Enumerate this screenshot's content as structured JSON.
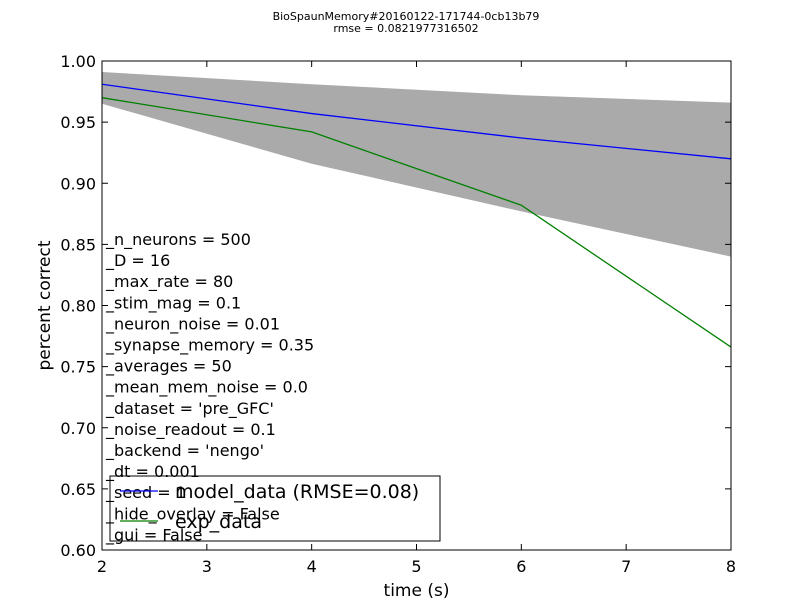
{
  "chart_data": {
    "type": "line",
    "title": "BioSpaunMemory#20160122-171744-0cb13b79",
    "subtitle": "rmse = 0.0821977316502",
    "xlabel": "time (s)",
    "ylabel": "percent correct",
    "xlim": [
      2,
      8
    ],
    "ylim": [
      0.6,
      1.0
    ],
    "x_ticks": [
      "2",
      "3",
      "4",
      "5",
      "6",
      "7",
      "8"
    ],
    "y_ticks": [
      "0.60",
      "0.65",
      "0.70",
      "0.75",
      "0.80",
      "0.85",
      "0.90",
      "0.95",
      "1.00"
    ],
    "grid": false,
    "legend_position": "lower-left",
    "series": [
      {
        "name": "model_data (RMSE=0.08)",
        "color": "#0000ff",
        "x": [
          2,
          4,
          6,
          8
        ],
        "y": [
          0.981,
          0.957,
          0.937,
          0.92
        ]
      },
      {
        "name": "exp_data",
        "color": "#008000",
        "x": [
          2,
          4,
          6,
          8
        ],
        "y": [
          0.97,
          0.942,
          0.882,
          0.766
        ]
      }
    ],
    "confidence_band": {
      "color": "#aaaaaa",
      "x": [
        2,
        4,
        6,
        8
      ],
      "lower": [
        0.965,
        0.916,
        0.877,
        0.84
      ],
      "upper": [
        0.991,
        0.981,
        0.972,
        0.966
      ]
    },
    "annotations": [
      "_n_neurons = 500",
      "_D = 16",
      "_max_rate = 80",
      "_stim_mag = 0.1",
      "_neuron_noise = 0.01",
      "_synapse_memory = 0.35",
      "_averages = 50",
      "_mean_mem_noise = 0.0",
      "_dataset = 'pre_GFC'",
      "_noise_readout = 0.1",
      "_backend = 'nengo'",
      "_dt = 0.001",
      "_seed = 1",
      "_hide_overlay = False",
      "_gui = False"
    ]
  }
}
